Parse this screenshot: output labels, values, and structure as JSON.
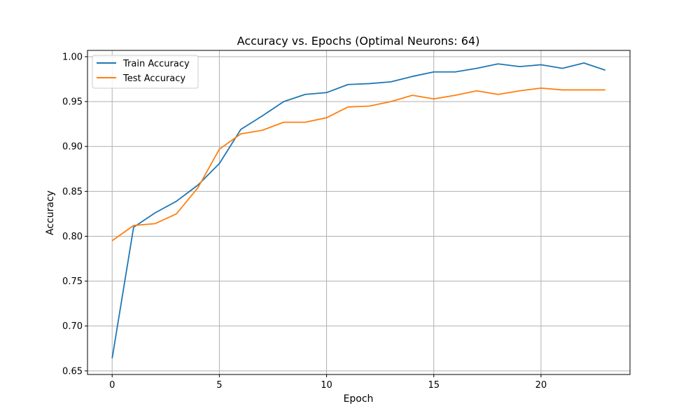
{
  "chart_data": {
    "type": "line",
    "title": "Accuracy vs. Epochs (Optimal Neurons: 64)",
    "xlabel": "Epoch",
    "ylabel": "Accuracy",
    "xlim": [
      -1.15,
      24.15
    ],
    "ylim": [
      0.646,
      1.007
    ],
    "xticks": [
      0,
      5,
      10,
      15,
      20
    ],
    "yticks": [
      0.65,
      0.7,
      0.75,
      0.8,
      0.85,
      0.9,
      0.95,
      1.0
    ],
    "grid": true,
    "legend_position": "top-left",
    "x": [
      0,
      1,
      2,
      3,
      4,
      5,
      6,
      7,
      8,
      9,
      10,
      11,
      12,
      13,
      14,
      15,
      16,
      17,
      18,
      19,
      20,
      21,
      22,
      23
    ],
    "series": [
      {
        "name": "Train Accuracy",
        "color": "#1f77b4",
        "values": [
          0.664,
          0.81,
          0.826,
          0.839,
          0.857,
          0.881,
          0.919,
          0.934,
          0.95,
          0.958,
          0.96,
          0.969,
          0.97,
          0.972,
          0.978,
          0.983,
          0.983,
          0.987,
          0.992,
          0.989,
          0.991,
          0.987,
          0.993,
          0.985
        ]
      },
      {
        "name": "Test Accuracy",
        "color": "#ff7f0e",
        "values": [
          0.795,
          0.812,
          0.814,
          0.825,
          0.854,
          0.897,
          0.914,
          0.918,
          0.927,
          0.927,
          0.932,
          0.944,
          0.945,
          0.95,
          0.957,
          0.953,
          0.957,
          0.962,
          0.958,
          0.962,
          0.965,
          0.963,
          0.963,
          0.963
        ]
      }
    ]
  }
}
